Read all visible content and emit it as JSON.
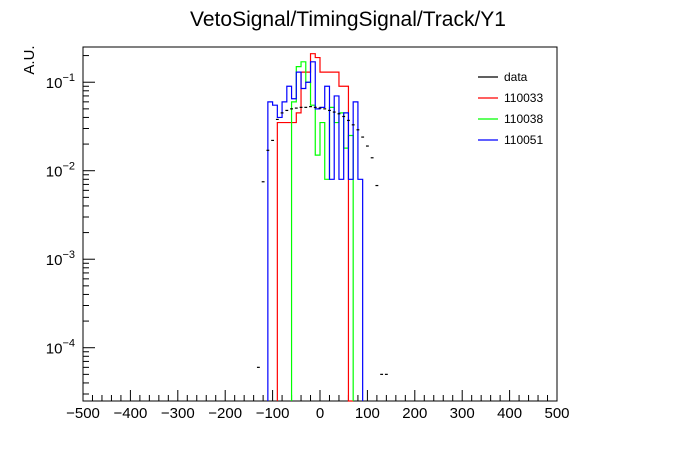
{
  "chart_data": {
    "type": "histogram",
    "title": "VetoSignal/TimingSignal/Track/Y1",
    "xlabel": "",
    "ylabel": "A.U.",
    "xlim": [
      -500,
      500
    ],
    "ylim": [
      2.5e-05,
      0.25
    ],
    "yscale": "log",
    "bin_width": 10,
    "x_ticks": [
      -500,
      -400,
      -300,
      -200,
      -100,
      0,
      100,
      200,
      300,
      400,
      500
    ],
    "x_tick_labels": [
      "−500",
      "−400",
      "−300",
      "−200",
      "−100",
      "0",
      "100",
      "200",
      "300",
      "400",
      "500"
    ],
    "y_ticks": [
      0.0001,
      0.001,
      0.01,
      0.1
    ],
    "y_tick_bases": [
      "10",
      "10",
      "10",
      "10"
    ],
    "y_tick_exponents": [
      "−4",
      "−3",
      "−2",
      "−1"
    ],
    "grid": false,
    "legend_position": "top-right",
    "series": [
      {
        "name": "data",
        "color": "#000000",
        "style": "markers",
        "x": [
          -130,
          -120,
          -110,
          -100,
          -90,
          -80,
          -70,
          -60,
          -50,
          -40,
          -30,
          -20,
          -10,
          0,
          10,
          20,
          30,
          40,
          50,
          60,
          70,
          80,
          90,
          100,
          110,
          120,
          130,
          140
        ],
        "y": [
          6e-05,
          0.0075,
          0.017,
          0.022,
          0.038,
          0.045,
          0.048,
          0.05,
          0.051,
          0.052,
          0.052,
          0.053,
          0.052,
          0.051,
          0.05,
          0.048,
          0.046,
          0.044,
          0.041,
          0.037,
          0.033,
          0.029,
          0.024,
          0.019,
          0.014,
          0.0068,
          5e-05,
          5e-05
        ]
      },
      {
        "name": "110033",
        "color": "#ff0000",
        "style": "step",
        "x_edges": [
          -90,
          -80,
          -70,
          -60,
          -50,
          -40,
          -30,
          -20,
          -10,
          0,
          10,
          20,
          30,
          40,
          50,
          60,
          70
        ],
        "y": [
          0.035,
          0.035,
          0.035,
          0.035,
          0.045,
          0.13,
          0.13,
          0.21,
          0.19,
          0.13,
          0.13,
          0.13,
          0.13,
          0.09,
          0.09,
          0.0
        ]
      },
      {
        "name": "110038",
        "color": "#00ff00",
        "style": "step",
        "x_edges": [
          -60,
          -50,
          -40,
          -30,
          -20,
          -10,
          0,
          10,
          20,
          30,
          40,
          50,
          60,
          70
        ],
        "y": [
          0.06,
          0.15,
          0.17,
          0.1,
          0.055,
          0.015,
          0.035,
          0.008,
          0.052,
          0.035,
          0.045,
          0.018,
          0.025
        ]
      },
      {
        "name": "110051",
        "color": "#0000ff",
        "style": "step",
        "x_edges": [
          -110,
          -100,
          -90,
          -80,
          -70,
          -60,
          -50,
          -40,
          -30,
          -20,
          -10,
          0,
          10,
          20,
          30,
          40,
          50,
          60,
          70,
          80,
          90
        ],
        "y": [
          0.06,
          0.055,
          0.04,
          0.06,
          0.09,
          0.065,
          0.13,
          0.085,
          0.1,
          0.17,
          0.05,
          0.052,
          0.09,
          0.008,
          0.07,
          0.008,
          0.045,
          0.008,
          0.06,
          0.008
        ]
      }
    ]
  }
}
